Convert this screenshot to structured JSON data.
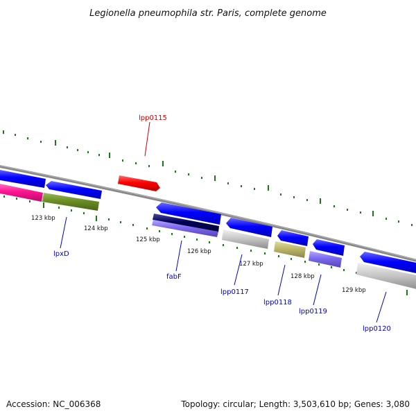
{
  "title": "Legionella pneumophila str. Paris, complete genome",
  "footer": {
    "accession": "Accession: NC_006368",
    "topology": "Topology: circular; Length: 3,503,610 bp; Genes: 3,080"
  },
  "colors": {
    "backbone": "#888888",
    "tick": "#1a7a1a",
    "label_blue": "#0000cc",
    "label_red": "#cc0000",
    "feature_blue": "#0000ff",
    "feature_red": "#ff0000",
    "feature_magenta": "#ff1493",
    "feature_olive": "#6b8e23",
    "feature_navy": "#00005a",
    "feature_lavender": "#7b68ee",
    "feature_lightgray": "#c8c8c8",
    "feature_khaki": "#bdb76b"
  },
  "tick_labels": [
    "123 kbp",
    "124 kbp",
    "125 kbp",
    "126 kbp",
    "127 kbp",
    "128 kbp",
    "129 kbp"
  ],
  "gene_labels": [
    "lpp0115",
    "lpxD",
    "fabF",
    "lpp0117",
    "lpp0118",
    "lpp0119",
    "lpp0120"
  ]
}
